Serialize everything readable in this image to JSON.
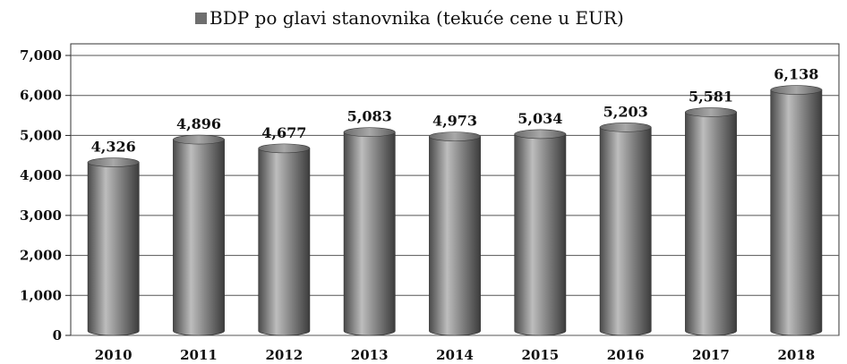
{
  "chart_data": {
    "type": "bar",
    "legend_entries": [
      "BDP po glavi stanovnika (tekuće cene u EUR)"
    ],
    "legend_position": "top-center",
    "categories": [
      "2010",
      "2011",
      "2012",
      "2013",
      "2014",
      "2015",
      "2016",
      "2017",
      "2018"
    ],
    "series": [
      {
        "name": "BDP po glavi stanovnika (tekuće cene u EUR)",
        "values": [
          4326,
          4896,
          4677,
          5083,
          4973,
          5034,
          5203,
          5581,
          6138
        ],
        "labels": [
          "4,326",
          "4,896",
          "4,677",
          "5,083",
          "4,973",
          "5,034",
          "5,203",
          "5,581",
          "6,138"
        ]
      }
    ],
    "ylim": [
      0,
      7000
    ],
    "yticks": [
      0,
      1000,
      2000,
      3000,
      4000,
      5000,
      6000,
      7000
    ],
    "ytick_labels": [
      "0",
      "1,000",
      "2,000",
      "3,000",
      "4,000",
      "5,000",
      "6,000",
      "7,000"
    ],
    "grid": true,
    "bar_style": "3d-cylinder",
    "colors": {
      "bar": "#7a7a7a",
      "bar_highlight": "#c8c8c8",
      "bar_shadow": "#3a3a3a",
      "grid": "#555555"
    }
  }
}
